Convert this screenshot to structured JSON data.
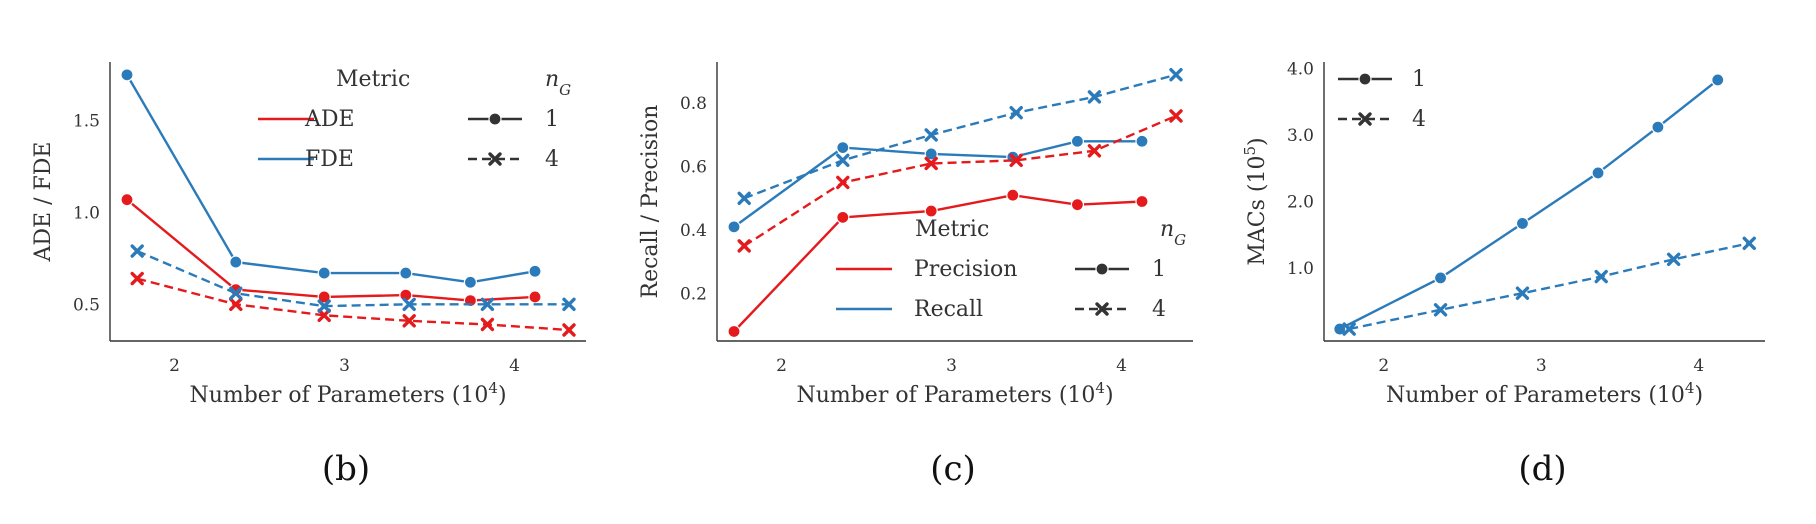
{
  "colors": {
    "red": "#e41a1c",
    "blue": "#2b7bba",
    "dark": "#333333"
  },
  "chart_data": [
    {
      "type": "line",
      "caption": "(b)",
      "xlabel": "Number of Parameters (10⁴)",
      "ylabel": "ADE / FDE",
      "xlim": [
        1.62,
        4.42
      ],
      "ylim": [
        0.3,
        1.82
      ],
      "xticks": [
        2,
        3,
        4
      ],
      "yticks": [
        0.5,
        1.0,
        1.5
      ],
      "xtick_labels": [
        "2",
        "3",
        "4"
      ],
      "ytick_labels": [
        "0.5",
        "1.0",
        "1.5"
      ],
      "legend": {
        "metric_title": "Metric",
        "ng_title": "nG",
        "metric_entries": [
          "ADE",
          "FDE"
        ],
        "ng_entries": [
          "1",
          "4"
        ],
        "placement": "top-right"
      },
      "series": [
        {
          "name": "ADE",
          "ng": "1",
          "color": "red",
          "dashed": false,
          "marker": "circle",
          "x": [
            1.72,
            2.36,
            2.88,
            3.36,
            3.74,
            4.12
          ],
          "y": [
            1.07,
            0.58,
            0.54,
            0.55,
            0.52,
            0.54
          ]
        },
        {
          "name": "FDE",
          "ng": "1",
          "color": "blue",
          "dashed": false,
          "marker": "circle",
          "x": [
            1.72,
            2.36,
            2.88,
            3.36,
            3.74,
            4.12
          ],
          "y": [
            1.75,
            0.73,
            0.67,
            0.67,
            0.62,
            0.68
          ]
        },
        {
          "name": "ADE",
          "ng": "4",
          "color": "red",
          "dashed": true,
          "marker": "x",
          "x": [
            1.78,
            2.36,
            2.88,
            3.38,
            3.84,
            4.32
          ],
          "y": [
            0.64,
            0.5,
            0.44,
            0.41,
            0.39,
            0.36
          ]
        },
        {
          "name": "FDE",
          "ng": "4",
          "color": "blue",
          "dashed": true,
          "marker": "x",
          "x": [
            1.78,
            2.36,
            2.88,
            3.38,
            3.84,
            4.32
          ],
          "y": [
            0.79,
            0.56,
            0.49,
            0.5,
            0.5,
            0.5
          ]
        }
      ]
    },
    {
      "type": "line",
      "caption": "(c)",
      "xlabel": "Number of Parameters (10⁴)",
      "ylabel": "Recall / Precision",
      "xlim": [
        1.62,
        4.42
      ],
      "ylim": [
        0.05,
        0.93
      ],
      "xticks": [
        2,
        3,
        4
      ],
      "yticks": [
        0.2,
        0.4,
        0.6,
        0.8
      ],
      "xtick_labels": [
        "2",
        "3",
        "4"
      ],
      "ytick_labels": [
        "0.2",
        "0.4",
        "0.6",
        "0.8"
      ],
      "legend": {
        "metric_title": "Metric",
        "ng_title": "nG",
        "metric_entries": [
          "Precision",
          "Recall"
        ],
        "ng_entries": [
          "1",
          "4"
        ],
        "placement": "lower-right"
      },
      "series": [
        {
          "name": "Precision",
          "ng": "1",
          "color": "red",
          "dashed": false,
          "marker": "circle",
          "x": [
            1.72,
            2.36,
            2.88,
            3.36,
            3.74,
            4.12
          ],
          "y": [
            0.08,
            0.44,
            0.46,
            0.51,
            0.48,
            0.49
          ]
        },
        {
          "name": "Recall",
          "ng": "1",
          "color": "blue",
          "dashed": false,
          "marker": "circle",
          "x": [
            1.72,
            2.36,
            2.88,
            3.36,
            3.74,
            4.12
          ],
          "y": [
            0.41,
            0.66,
            0.64,
            0.63,
            0.68,
            0.68
          ]
        },
        {
          "name": "Precision",
          "ng": "4",
          "color": "red",
          "dashed": true,
          "marker": "x",
          "x": [
            1.78,
            2.36,
            2.88,
            3.38,
            3.84,
            4.32
          ],
          "y": [
            0.35,
            0.55,
            0.61,
            0.62,
            0.65,
            0.76
          ]
        },
        {
          "name": "Recall",
          "ng": "4",
          "color": "blue",
          "dashed": true,
          "marker": "x",
          "x": [
            1.78,
            2.36,
            2.88,
            3.38,
            3.84,
            4.32
          ],
          "y": [
            0.5,
            0.62,
            0.7,
            0.77,
            0.82,
            0.89
          ]
        }
      ]
    },
    {
      "type": "line",
      "caption": "(d)",
      "xlabel": "Number of Parameters (10⁴)",
      "ylabel": "MACs (10⁵)",
      "xlim": [
        1.62,
        4.42
      ],
      "ylim": [
        -0.1,
        4.1
      ],
      "xticks": [
        2,
        3,
        4
      ],
      "yticks": [
        1.0,
        2.0,
        3.0,
        4.0
      ],
      "xtick_labels": [
        "2",
        "3",
        "4"
      ],
      "ytick_labels": [
        "1.0",
        "2.0",
        "3.0",
        "4.0"
      ],
      "legend": {
        "metric_title": "",
        "ng_title": "",
        "metric_entries": [],
        "ng_entries": [
          "1",
          "4"
        ],
        "placement": "top-left"
      },
      "series": [
        {
          "name": "",
          "ng": "1",
          "color": "blue",
          "dashed": false,
          "marker": "circle",
          "x": [
            1.72,
            2.36,
            2.88,
            3.36,
            3.74,
            4.12
          ],
          "y": [
            0.08,
            0.85,
            1.67,
            2.43,
            3.12,
            3.83
          ]
        },
        {
          "name": "",
          "ng": "4",
          "color": "blue",
          "dashed": true,
          "marker": "x",
          "x": [
            1.78,
            2.36,
            2.88,
            3.38,
            3.84,
            4.32
          ],
          "y": [
            0.08,
            0.37,
            0.62,
            0.87,
            1.13,
            1.37
          ]
        }
      ]
    }
  ]
}
